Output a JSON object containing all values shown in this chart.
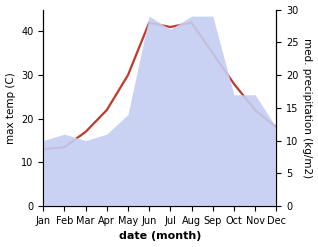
{
  "months": [
    "Jan",
    "Feb",
    "Mar",
    "Apr",
    "May",
    "Jun",
    "Jul",
    "Aug",
    "Sep",
    "Oct",
    "Nov",
    "Dec"
  ],
  "temp_data": [
    13,
    13.5,
    17,
    22,
    30,
    42,
    41,
    42,
    35,
    28,
    22,
    18
  ],
  "precip_data": [
    10,
    11,
    10,
    11,
    14,
    29,
    27,
    29,
    29,
    17,
    17,
    12
  ],
  "temp_color": "#c0392b",
  "precip_fill_color": "#c5cdf2",
  "precip_fill_alpha": 0.9,
  "temp_ylim": [
    0,
    45
  ],
  "precip_ylim": [
    0,
    30
  ],
  "temp_yticks": [
    0,
    10,
    20,
    30,
    40
  ],
  "precip_yticks": [
    0,
    5,
    10,
    15,
    20,
    25,
    30
  ],
  "xlabel": "date (month)",
  "ylabel_left": "max temp (C)",
  "ylabel_right": "med. precipitation (kg/m2)",
  "xlabel_fontsize": 8,
  "ylabel_fontsize": 7.5,
  "tick_fontsize": 7,
  "line_width": 1.6,
  "background_color": "#ffffff"
}
